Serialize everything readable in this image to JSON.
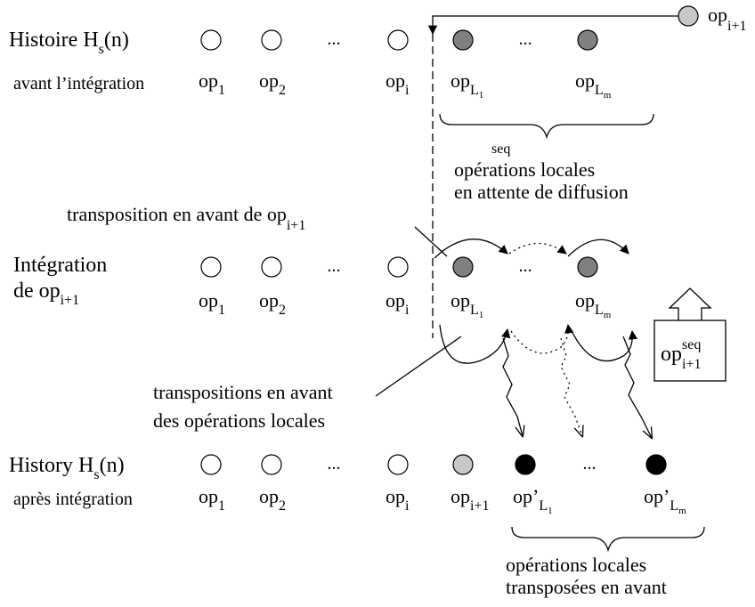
{
  "rows": [
    {
      "title": {
        "text": "Histoire H",
        "sub": "s",
        "tail": "(n)"
      },
      "subtitle": "avant l’intégration",
      "ops": [
        {
          "base": "op",
          "sub": "1"
        },
        {
          "base": "op",
          "sub": "2"
        },
        {
          "base": "op",
          "sub": "i"
        },
        {
          "base": "op",
          "sub": "L",
          "subsub": "1"
        },
        {
          "base": "op",
          "sub": "L",
          "subsub": "m"
        }
      ],
      "ellipses": [
        "...",
        "..."
      ]
    },
    {
      "title": {
        "text": "Intégration"
      },
      "subtitle": {
        "text": "de op",
        "sub": "i+1"
      },
      "ops": [
        {
          "base": "op",
          "sub": "1"
        },
        {
          "base": "op",
          "sub": "2"
        },
        {
          "base": "op",
          "sub": "i"
        },
        {
          "base": "op",
          "sub": "L",
          "subsub": "1"
        },
        {
          "base": "op",
          "sub": "L",
          "subsub": "m"
        }
      ],
      "ellipses": [
        "...",
        "..."
      ]
    },
    {
      "title": {
        "text": "History H",
        "sub": "s",
        "tail": "(n)"
      },
      "subtitle": "après intégration",
      "ops": [
        {
          "base": "op",
          "sub": "1"
        },
        {
          "base": "op",
          "sub": "2"
        },
        {
          "base": "op",
          "sub": "i"
        },
        {
          "base": "op",
          "sub": "i+1"
        },
        {
          "base": "op",
          "prime": "’",
          "sub": "L",
          "subsub": "1"
        },
        {
          "base": "op",
          "prime": "’",
          "sub": "L",
          "subsub": "m"
        }
      ],
      "ellipses": [
        "...",
        "..."
      ]
    }
  ],
  "incoming": {
    "base": "op",
    "sub": "i+1"
  },
  "brace1": {
    "label": "seq",
    "lines": [
      "opérations locales",
      "en attente de diffusion"
    ]
  },
  "forward": {
    "text": "transposition en avant de op",
    "sub": "i+1"
  },
  "box": {
    "base": "op",
    "sup": "seq",
    "sub": "i+1"
  },
  "locals": {
    "lines": [
      "transpositions en avant",
      "des opérations locales"
    ]
  },
  "brace2": {
    "lines": [
      "opérations locales",
      "transposées en avant"
    ]
  }
}
